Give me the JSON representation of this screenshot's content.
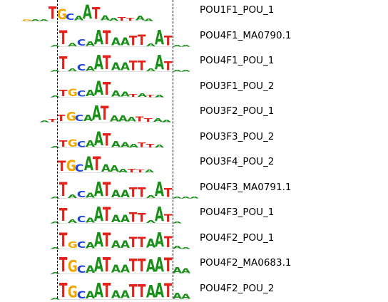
{
  "colors": {
    "A": "#1a8f1a",
    "T": "#e0241b",
    "G": "#f0a800",
    "C": "#2046d6"
  },
  "rows": [
    {
      "label": "POU1F1_POU_1",
      "motif": [
        [
          "G",
          0.05
        ],
        [
          "A",
          0.08
        ],
        [
          "A",
          0.1
        ],
        [
          "T",
          0.85
        ],
        [
          "G",
          0.7
        ],
        [
          "C",
          0.45
        ],
        [
          "A",
          0.3
        ],
        [
          "A",
          0.95
        ],
        [
          "T",
          0.8
        ],
        [
          "A",
          0.35
        ],
        [
          "A",
          0.2
        ],
        [
          "T",
          0.25
        ],
        [
          "T",
          0.2
        ],
        [
          "A",
          0.3
        ],
        [
          "A",
          0.15
        ]
      ]
    },
    {
      "label": "POU4F1_MA0790.1",
      "motif": [
        [
          "A",
          0.1
        ],
        [
          "T",
          0.95
        ],
        [
          "A",
          0.25
        ],
        [
          "C",
          0.45
        ],
        [
          "A",
          0.3
        ],
        [
          "A",
          1.0
        ],
        [
          "T",
          0.95
        ],
        [
          "A",
          0.55
        ],
        [
          "A",
          0.55
        ],
        [
          "T",
          0.65
        ],
        [
          "T",
          0.7
        ],
        [
          "A",
          0.2
        ],
        [
          "A",
          1.0
        ],
        [
          "T",
          0.65
        ],
        [
          "A",
          0.1
        ],
        [
          "A",
          0.05
        ]
      ]
    },
    {
      "label": "POU4F1_POU_1",
      "motif": [
        [
          "A",
          0.1
        ],
        [
          "T",
          0.9
        ],
        [
          "A",
          0.2
        ],
        [
          "C",
          0.45
        ],
        [
          "A",
          0.3
        ],
        [
          "A",
          1.0
        ],
        [
          "T",
          0.95
        ],
        [
          "A",
          0.55
        ],
        [
          "A",
          0.55
        ],
        [
          "T",
          0.65
        ],
        [
          "T",
          0.65
        ],
        [
          "A",
          0.2
        ],
        [
          "A",
          1.0
        ],
        [
          "T",
          0.6
        ],
        [
          "A",
          0.1
        ],
        [
          "A",
          0.05
        ]
      ]
    },
    {
      "label": "POU3F1_POU_2",
      "motif": [
        [
          "A",
          0.1
        ],
        [
          "T",
          0.45
        ],
        [
          "G",
          0.5
        ],
        [
          "C",
          0.4
        ],
        [
          "A",
          0.45
        ],
        [
          "A",
          0.95
        ],
        [
          "T",
          0.9
        ],
        [
          "A",
          0.4
        ],
        [
          "A",
          0.35
        ],
        [
          "T",
          0.2
        ],
        [
          "A",
          0.25
        ],
        [
          "T",
          0.15
        ],
        [
          "A",
          0.15
        ]
      ]
    },
    {
      "label": "POU3F2_POU_1",
      "motif": [
        [
          "A",
          0.1
        ],
        [
          "T",
          0.2
        ],
        [
          "T",
          0.45
        ],
        [
          "G",
          0.6
        ],
        [
          "C",
          0.45
        ],
        [
          "A",
          0.45
        ],
        [
          "A",
          1.0
        ],
        [
          "T",
          0.95
        ],
        [
          "A",
          0.4
        ],
        [
          "A",
          0.4
        ],
        [
          "A",
          0.3
        ],
        [
          "T",
          0.35
        ],
        [
          "T",
          0.25
        ],
        [
          "A",
          0.25
        ],
        [
          "A",
          0.15
        ]
      ]
    },
    {
      "label": "POU3F3_POU_2",
      "motif": [
        [
          "A",
          0.1
        ],
        [
          "T",
          0.45
        ],
        [
          "G",
          0.5
        ],
        [
          "C",
          0.4
        ],
        [
          "A",
          0.45
        ],
        [
          "A",
          0.95
        ],
        [
          "T",
          0.85
        ],
        [
          "A",
          0.4
        ],
        [
          "A",
          0.35
        ],
        [
          "A",
          0.25
        ],
        [
          "T",
          0.3
        ],
        [
          "T",
          0.25
        ],
        [
          "A",
          0.2
        ]
      ]
    },
    {
      "label": "POU3F4_POU_2",
      "motif": [
        [
          "T",
          0.7
        ],
        [
          "G",
          0.75
        ],
        [
          "C",
          0.5
        ],
        [
          "A",
          0.95
        ],
        [
          "T",
          0.95
        ],
        [
          "A",
          0.5
        ],
        [
          "A",
          0.45
        ],
        [
          "A",
          0.25
        ],
        [
          "T",
          0.25
        ],
        [
          "T",
          0.2
        ],
        [
          "A",
          0.2
        ]
      ]
    },
    {
      "label": "POU4F3_MA0791.1",
      "motif": [
        [
          "A",
          0.05
        ],
        [
          "T",
          0.95
        ],
        [
          "A",
          0.25
        ],
        [
          "C",
          0.45
        ],
        [
          "A",
          0.35
        ],
        [
          "A",
          1.0
        ],
        [
          "T",
          0.95
        ],
        [
          "A",
          0.5
        ],
        [
          "A",
          0.5
        ],
        [
          "T",
          0.65
        ],
        [
          "T",
          0.65
        ],
        [
          "A",
          0.2
        ],
        [
          "A",
          1.0
        ],
        [
          "T",
          0.6
        ],
        [
          "A",
          0.1
        ],
        [
          "A",
          0.05
        ],
        [
          "A",
          0.05
        ]
      ]
    },
    {
      "label": "POU4F3_POU_1",
      "motif": [
        [
          "A",
          0.05
        ],
        [
          "T",
          0.9
        ],
        [
          "A",
          0.25
        ],
        [
          "C",
          0.45
        ],
        [
          "A",
          0.35
        ],
        [
          "A",
          1.0
        ],
        [
          "T",
          0.95
        ],
        [
          "A",
          0.5
        ],
        [
          "A",
          0.5
        ],
        [
          "T",
          0.65
        ],
        [
          "T",
          0.6
        ],
        [
          "A",
          0.2
        ],
        [
          "A",
          1.0
        ],
        [
          "T",
          0.55
        ],
        [
          "A",
          0.1
        ]
      ]
    },
    {
      "label": "POU4F2_POU_1",
      "motif": [
        [
          "A",
          0.05
        ],
        [
          "T",
          0.95
        ],
        [
          "G",
          0.45
        ],
        [
          "C",
          0.45
        ],
        [
          "A",
          0.4
        ],
        [
          "A",
          1.0
        ],
        [
          "T",
          0.95
        ],
        [
          "A",
          0.5
        ],
        [
          "A",
          0.5
        ],
        [
          "T",
          0.7
        ],
        [
          "T",
          0.7
        ],
        [
          "A",
          0.6
        ],
        [
          "A",
          1.0
        ],
        [
          "T",
          0.75
        ],
        [
          "A",
          0.2
        ],
        [
          "A",
          0.1
        ]
      ]
    },
    {
      "label": "POU4F2_MA0683.1",
      "motif": [
        [
          "A",
          0.1
        ],
        [
          "T",
          1.0
        ],
        [
          "G",
          0.8
        ],
        [
          "C",
          0.5
        ],
        [
          "A",
          0.5
        ],
        [
          "A",
          1.0
        ],
        [
          "T",
          1.0
        ],
        [
          "A",
          0.55
        ],
        [
          "A",
          0.55
        ],
        [
          "T",
          0.9
        ],
        [
          "T",
          0.9
        ],
        [
          "A",
          0.85
        ],
        [
          "A",
          1.0
        ],
        [
          "T",
          0.95
        ],
        [
          "A",
          0.4
        ],
        [
          "A",
          0.35
        ]
      ]
    },
    {
      "label": "POU4F2_POU_2",
      "motif": [
        [
          "A",
          0.1
        ],
        [
          "T",
          1.0
        ],
        [
          "G",
          0.8
        ],
        [
          "C",
          0.5
        ],
        [
          "A",
          0.5
        ],
        [
          "A",
          1.0
        ],
        [
          "T",
          1.0
        ],
        [
          "A",
          0.55
        ],
        [
          "A",
          0.55
        ],
        [
          "T",
          0.9
        ],
        [
          "T",
          0.9
        ],
        [
          "A",
          0.85
        ],
        [
          "A",
          1.0
        ],
        [
          "T",
          0.95
        ],
        [
          "A",
          0.4
        ],
        [
          "A",
          0.35
        ]
      ]
    }
  ]
}
